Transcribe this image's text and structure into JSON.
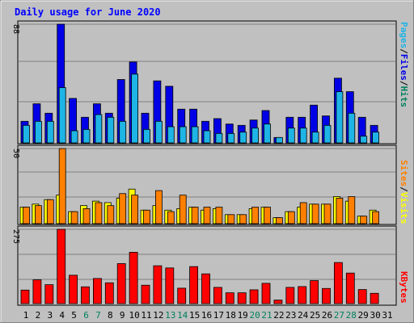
{
  "chart_data": {
    "type": "bar",
    "title": "Daily usage for June 2020",
    "categories": [
      "1",
      "2",
      "3",
      "4",
      "5",
      "6",
      "7",
      "8",
      "9",
      "10",
      "11",
      "12",
      "13",
      "14",
      "15",
      "16",
      "17",
      "18",
      "19",
      "20",
      "21",
      "22",
      "23",
      "24",
      "25",
      "26",
      "27",
      "28",
      "29",
      "30",
      "31"
    ],
    "weekend_days": [
      "6",
      "7",
      "13",
      "14",
      "20",
      "21",
      "27",
      "28"
    ],
    "grid": true,
    "panels": [
      {
        "id": "hits-files-pages",
        "ymax": 88,
        "ymax_label": "88",
        "legend": [
          "Pages",
          "/",
          "Files",
          "/",
          "Hits"
        ],
        "series": [
          {
            "name": "Hits",
            "color": "#00805c",
            "values": [
              16,
              29,
              22,
              88,
              33,
              19,
              29,
              22,
              47,
              60,
              22,
              46,
              42,
              25,
              25,
              16,
              18,
              14,
              13,
              17,
              24,
              4,
              19,
              19,
              28,
              20,
              48,
              38,
              19,
              13,
              0
            ]
          },
          {
            "name": "Files",
            "color": "#0000e6",
            "values": [
              16,
              29,
              22,
              88,
              33,
              19,
              29,
              22,
              47,
              60,
              22,
              46,
              42,
              25,
              25,
              16,
              18,
              14,
              13,
              17,
              24,
              4,
              19,
              19,
              28,
              20,
              48,
              38,
              19,
              13,
              0
            ]
          },
          {
            "name": "Pages",
            "color": "#1eb4e6",
            "values": [
              13,
              16,
              16,
              41,
              9,
              10,
              21,
              19,
              16,
              51,
              10,
              16,
              12,
              12,
              12,
              9,
              7,
              7,
              8,
              11,
              14,
              4,
              11,
              11,
              8,
              13,
              38,
              22,
              5,
              8,
              0
            ]
          }
        ]
      },
      {
        "id": "visits-sites",
        "ymax": 50,
        "ymax_label": "50",
        "legend": [
          "Sites",
          "/",
          "Visits"
        ],
        "series": [
          {
            "name": "Visits",
            "color": "#ffff00",
            "values": [
              11,
              13,
              16,
              19,
              8,
              12,
              15,
              14,
              17,
              23,
              9,
              12,
              9,
              10,
              11,
              9,
              10,
              6,
              6,
              10,
              11,
              4,
              8,
              11,
              13,
              13,
              18,
              15,
              5,
              9,
              0
            ]
          },
          {
            "name": "Sites",
            "color": "#ff8000",
            "values": [
              11,
              12,
              16,
              50,
              8,
              10,
              14,
              12,
              20,
              19,
              9,
              22,
              8,
              19,
              11,
              11,
              11,
              6,
              6,
              11,
              11,
              4,
              8,
              14,
              13,
              13,
              17,
              18,
              5,
              8,
              0
            ]
          }
        ]
      },
      {
        "id": "kbytes",
        "ymax": 275,
        "ymax_label": "275",
        "legend": [
          "KBytes"
        ],
        "series": [
          {
            "name": "KBytes",
            "color": "#ff0000",
            "values": [
              50,
              88,
              70,
              275,
              105,
              62,
              93,
              77,
              148,
              190,
              68,
              140,
              132,
              57,
              137,
              110,
              60,
              40,
              40,
              51,
              75,
              13,
              60,
              63,
              85,
              56,
              152,
              113,
              52,
              38,
              0
            ]
          }
        ]
      }
    ]
  }
}
